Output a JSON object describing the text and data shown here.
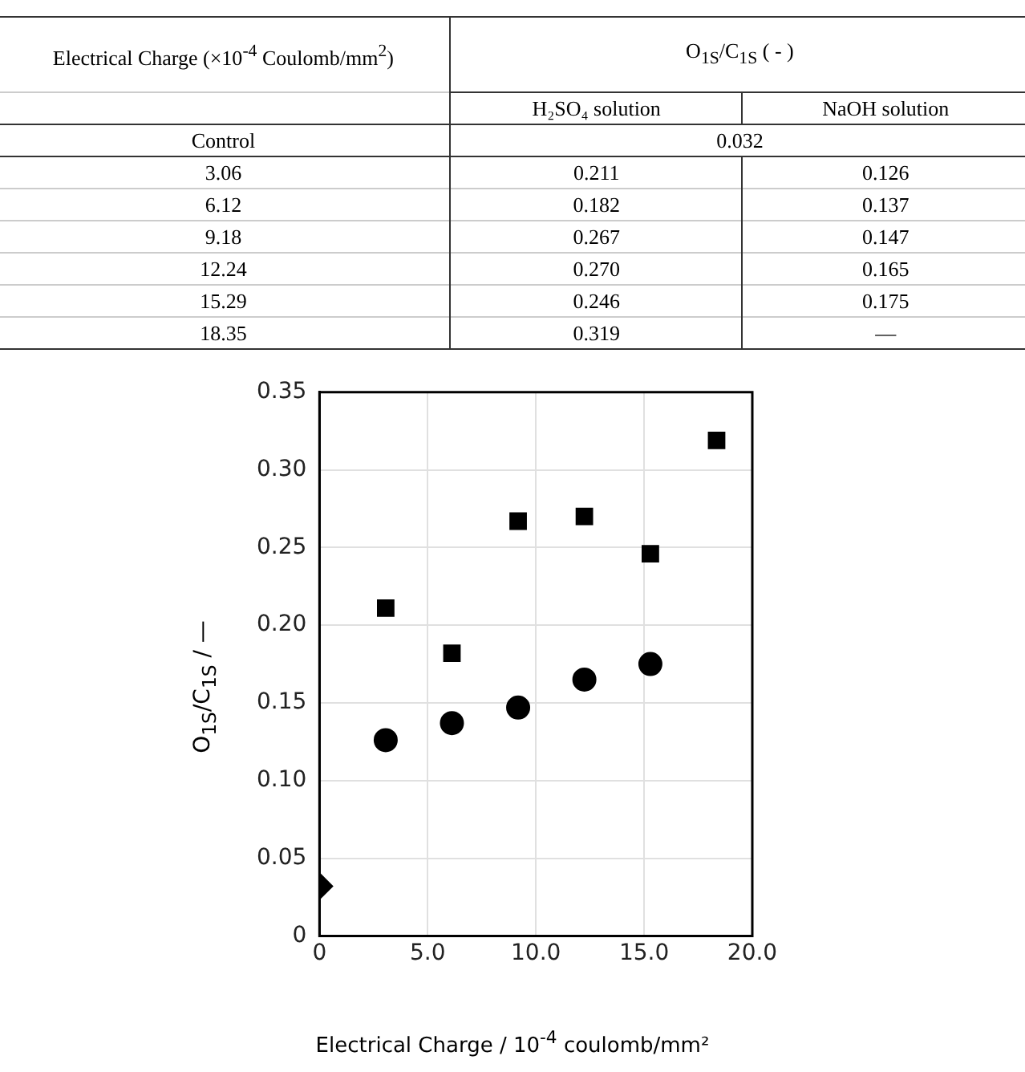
{
  "chart_data": [
    {
      "type": "heatmap",
      "title": "O$_{1S}$/C$_{1S}$ ( - )",
      "ylabel": "Electrical Charge (×10$^{-4}$ Coulomb/mm$^{2}$)",
      "categories": [
        "H₂SO₄ solution",
        "NaOH solution"
      ],
      "y_categories": [
        "Control",
        "3.06",
        "6.12",
        "9.18",
        "12.24",
        "15.29",
        "18.35"
      ],
      "cells": [
        [
          0.032,
          null
        ],
        [
          0.211,
          0.126
        ],
        [
          0.182,
          0.137
        ],
        [
          0.267,
          0.147
        ],
        [
          0.27,
          0.165
        ],
        [
          0.246,
          0.175
        ],
        [
          0.319,
          null
        ]
      ],
      "cell_labels": [
        [
          "0.032",
          null
        ],
        [
          "0.211",
          "0.126"
        ],
        [
          "0.182",
          "0.137"
        ],
        [
          "0.267",
          "0.147"
        ],
        [
          "0.270",
          "0.165"
        ],
        [
          "0.246",
          "0.175"
        ],
        [
          "0.319",
          "—"
        ]
      ]
    },
    {
      "type": "scatter",
      "xlabel": "Electrical Charge / 10$^{-4}$ coulomb/mm²",
      "ylabel": "O$_{1S}$/C$_{1S}$  /  —",
      "series": [
        {
          "color": "#000000",
          "marker": "diamond",
          "x": [
            0
          ],
          "values": [
            0.032
          ]
        },
        {
          "color": "#000000",
          "marker": "square",
          "x": [
            3.06,
            6.12,
            9.18,
            12.24,
            15.29,
            18.35
          ],
          "values": [
            0.211,
            0.182,
            0.267,
            0.27,
            0.246,
            0.319
          ]
        },
        {
          "color": "#000000",
          "marker": "circle",
          "x": [
            3.06,
            6.12,
            9.18,
            12.24,
            15.29
          ],
          "values": [
            0.126,
            0.137,
            0.147,
            0.165,
            0.175
          ]
        }
      ],
      "xlim": [
        0,
        20
      ],
      "xticks": [
        {
          "value": 0,
          "label": "0"
        },
        {
          "value": 5,
          "label": "5.0"
        },
        {
          "value": 10,
          "label": "10.0"
        },
        {
          "value": 15,
          "label": "15.0"
        },
        {
          "value": 20,
          "label": "20.0"
        }
      ],
      "ylim": [
        0,
        0.35
      ],
      "yticks": [
        {
          "value": 0,
          "label": "0"
        },
        {
          "value": 0.05,
          "label": "0.05"
        },
        {
          "value": 0.1,
          "label": "0.10"
        },
        {
          "value": 0.15,
          "label": "0.15"
        },
        {
          "value": 0.2,
          "label": "0.20"
        },
        {
          "value": 0.25,
          "label": "0.25"
        },
        {
          "value": 0.3,
          "label": "0.30"
        },
        {
          "value": 0.35,
          "label": "0.35"
        }
      ],
      "grid": true
    }
  ]
}
